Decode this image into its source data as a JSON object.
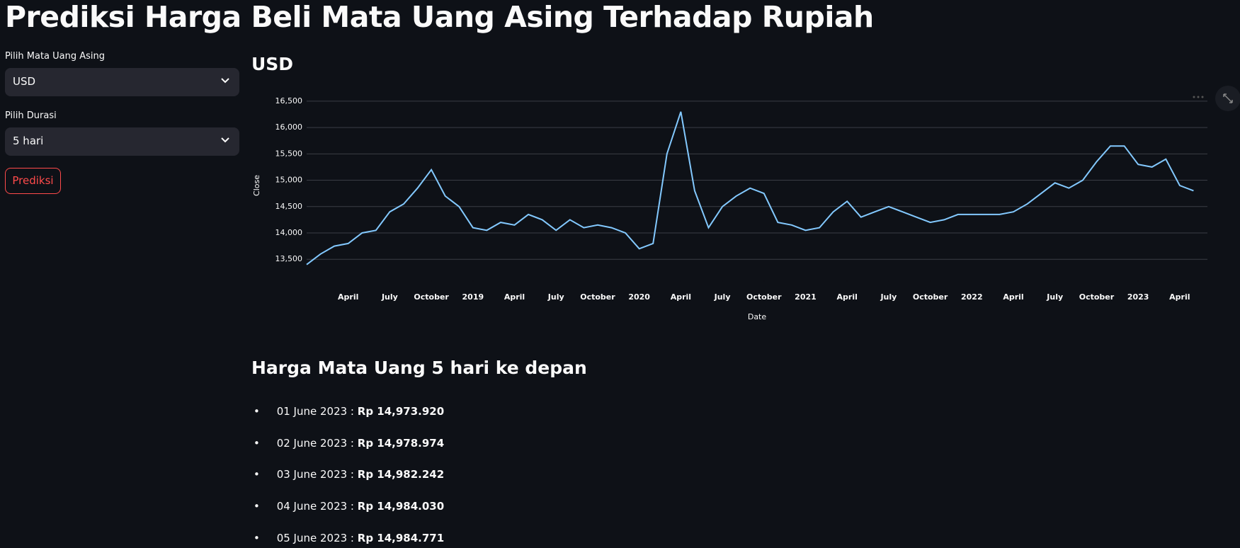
{
  "header": {
    "title": "Prediksi Harga Beli Mata Uang Asing Terhadap Rupiah"
  },
  "sidebar": {
    "currency_label": "Pilih Mata Uang Asing",
    "currency_value": "USD",
    "duration_label": "Pilih Durasi",
    "duration_value": "5 hari",
    "button": "Prediksi"
  },
  "chart_data": {
    "type": "line",
    "title": "USD",
    "x_label": "Date",
    "y_label": "Close",
    "color": "#83c9ff",
    "grid": true,
    "x": [
      "2018-01",
      "2018-02",
      "2018-03",
      "2018-04",
      "2018-05",
      "2018-06",
      "2018-07",
      "2018-08",
      "2018-09",
      "2018-10",
      "2018-11",
      "2018-12",
      "2019-01",
      "2019-02",
      "2019-03",
      "2019-04",
      "2019-05",
      "2019-06",
      "2019-07",
      "2019-08",
      "2019-09",
      "2019-10",
      "2019-11",
      "2019-12",
      "2020-01",
      "2020-02",
      "2020-03",
      "2020-04",
      "2020-05",
      "2020-06",
      "2020-07",
      "2020-08",
      "2020-09",
      "2020-10",
      "2020-11",
      "2020-12",
      "2021-01",
      "2021-02",
      "2021-03",
      "2021-04",
      "2021-05",
      "2021-06",
      "2021-07",
      "2021-08",
      "2021-09",
      "2021-10",
      "2021-11",
      "2021-12",
      "2022-01",
      "2022-02",
      "2022-03",
      "2022-04",
      "2022-05",
      "2022-06",
      "2022-07",
      "2022-08",
      "2022-09",
      "2022-10",
      "2022-11",
      "2022-12",
      "2023-01",
      "2023-02",
      "2023-03",
      "2023-04",
      "2023-05"
    ],
    "values": [
      13400,
      13600,
      13750,
      13800,
      14000,
      14050,
      14400,
      14550,
      14850,
      15200,
      14700,
      14500,
      14100,
      14050,
      14200,
      14150,
      14350,
      14250,
      14050,
      14250,
      14100,
      14150,
      14100,
      14000,
      13700,
      13800,
      15500,
      16300,
      14800,
      14100,
      14500,
      14700,
      14850,
      14750,
      14200,
      14150,
      14050,
      14100,
      14400,
      14600,
      14300,
      14400,
      14500,
      14400,
      14300,
      14200,
      14250,
      14350,
      14350,
      14350,
      14350,
      14400,
      14550,
      14750,
      14950,
      14850,
      15000,
      15350,
      15650,
      15650,
      15300,
      15250,
      15400,
      14900,
      14800
    ],
    "xlim": [
      "2018-01",
      "2023-06"
    ],
    "xticks": [
      {
        "value": "2018-04",
        "label": "April"
      },
      {
        "value": "2018-07",
        "label": "July"
      },
      {
        "value": "2018-10",
        "label": "October"
      },
      {
        "value": "2019-01",
        "label": "2019"
      },
      {
        "value": "2019-04",
        "label": "April"
      },
      {
        "value": "2019-07",
        "label": "July"
      },
      {
        "value": "2019-10",
        "label": "October"
      },
      {
        "value": "2020-01",
        "label": "2020"
      },
      {
        "value": "2020-04",
        "label": "April"
      },
      {
        "value": "2020-07",
        "label": "July"
      },
      {
        "value": "2020-10",
        "label": "October"
      },
      {
        "value": "2021-01",
        "label": "2021"
      },
      {
        "value": "2021-04",
        "label": "April"
      },
      {
        "value": "2021-07",
        "label": "July"
      },
      {
        "value": "2021-10",
        "label": "October"
      },
      {
        "value": "2022-01",
        "label": "2022"
      },
      {
        "value": "2022-04",
        "label": "April"
      },
      {
        "value": "2022-07",
        "label": "July"
      },
      {
        "value": "2022-10",
        "label": "October"
      },
      {
        "value": "2023-01",
        "label": "2023"
      },
      {
        "value": "2023-04",
        "label": "April"
      }
    ],
    "ylim": [
      13100,
      16700
    ],
    "yticks": [
      {
        "value": 13500,
        "label": "13,500"
      },
      {
        "value": 14000,
        "label": "14,000"
      },
      {
        "value": 14500,
        "label": "14,500"
      },
      {
        "value": 15000,
        "label": "15,000"
      },
      {
        "value": 15500,
        "label": "15,500"
      },
      {
        "value": 16000,
        "label": "16,000"
      },
      {
        "value": 16500,
        "label": "16,500"
      }
    ]
  },
  "forecast": {
    "title": "Harga Mata Uang 5 hari ke depan",
    "items": [
      {
        "date": "01 June 2023 :",
        "price": "Rp 14,973.920"
      },
      {
        "date": "02 June 2023 :",
        "price": "Rp 14,978.974"
      },
      {
        "date": "03 June 2023 :",
        "price": "Rp 14,982.242"
      },
      {
        "date": "04 June 2023 :",
        "price": "Rp 14,984.030"
      },
      {
        "date": "05 June 2023 :",
        "price": "Rp 14,984.771"
      }
    ]
  }
}
